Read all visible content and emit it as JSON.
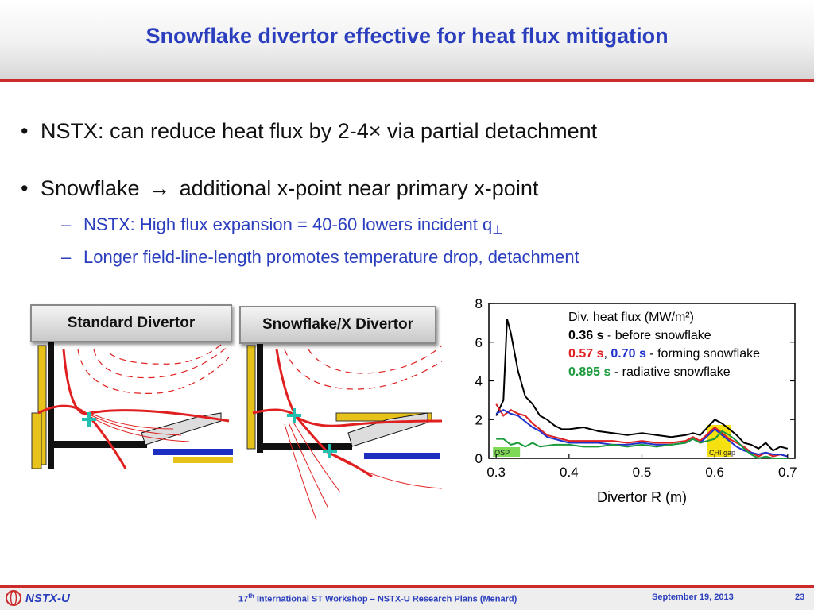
{
  "header": {
    "title": "Snowflake divertor effective for heat flux mitigation"
  },
  "bullets": [
    {
      "text": "NSTX: can reduce heat flux by 2-4×  via partial detachment"
    },
    {
      "pre": "Snowflake",
      "arrow": "→",
      "post": "additional x-point near primary x-point"
    }
  ],
  "subbullets": [
    {
      "text": "NSTX:  High flux expansion = 40-60 lowers incident q",
      "subscript": "⊥"
    },
    {
      "text": "Longer field-line-length promotes temperature drop, detachment"
    }
  ],
  "divertor_labels": {
    "standard": "Standard Divertor",
    "snowflake": "Snowflake/X Divertor"
  },
  "chart_data": {
    "type": "line",
    "title": "Div. heat flux (MW/m²)",
    "xlabel": "Divertor R (m)",
    "ylabel": "",
    "xlim": [
      0.29,
      0.71
    ],
    "ylim": [
      0,
      8
    ],
    "xticks": [
      0.3,
      0.4,
      0.5,
      0.6,
      0.7
    ],
    "yticks": [
      0,
      2,
      4,
      6,
      8
    ],
    "legend": [
      {
        "parts": [
          {
            "text": "0.36 s",
            "color": "#000000",
            "bold": true
          },
          {
            "text": " - before snowflake",
            "color": "#000000",
            "bold": false
          }
        ]
      },
      {
        "parts": [
          {
            "text": "0.57 s",
            "color": "#e02020",
            "bold": true
          },
          {
            "text": ", ",
            "color": "#000000",
            "bold": false
          },
          {
            "text": "0.70 s",
            "color": "#2233cc",
            "bold": true
          },
          {
            "text": " - forming snowflake",
            "color": "#000000",
            "bold": false
          }
        ]
      },
      {
        "parts": [
          {
            "text": "0.895 s",
            "color": "#1a9a3a",
            "bold": true
          },
          {
            "text": " - radiative snowflake",
            "color": "#000000",
            "bold": false
          }
        ]
      }
    ],
    "annotations": [
      {
        "text": "OSP",
        "x": 0.3,
        "color": "#7ed957"
      },
      {
        "text": "CHI gap",
        "x": 0.59,
        "color": "#f5e010"
      }
    ],
    "series": [
      {
        "color": "#000000",
        "x": [
          0.3,
          0.31,
          0.315,
          0.32,
          0.33,
          0.34,
          0.35,
          0.36,
          0.37,
          0.38,
          0.39,
          0.4,
          0.42,
          0.44,
          0.46,
          0.48,
          0.5,
          0.52,
          0.54,
          0.56,
          0.57,
          0.58,
          0.6,
          0.61,
          0.62,
          0.63,
          0.64,
          0.65,
          0.66,
          0.67,
          0.68,
          0.69,
          0.7
        ],
        "values": [
          2.2,
          3.0,
          7.2,
          6.5,
          4.5,
          3.2,
          2.8,
          2.2,
          2.0,
          1.7,
          1.5,
          1.5,
          1.6,
          1.4,
          1.3,
          1.2,
          1.3,
          1.2,
          1.1,
          1.2,
          1.3,
          1.2,
          2.0,
          1.8,
          1.5,
          1.2,
          0.8,
          0.7,
          0.5,
          0.8,
          0.4,
          0.6,
          0.5
        ]
      },
      {
        "color": "#e02020",
        "x": [
          0.3,
          0.31,
          0.32,
          0.33,
          0.34,
          0.35,
          0.36,
          0.37,
          0.38,
          0.39,
          0.4,
          0.42,
          0.44,
          0.46,
          0.48,
          0.5,
          0.52,
          0.54,
          0.56,
          0.57,
          0.58,
          0.6,
          0.61,
          0.62,
          0.63,
          0.64,
          0.65,
          0.66,
          0.67,
          0.68,
          0.69,
          0.7
        ],
        "values": [
          2.8,
          2.2,
          2.5,
          2.3,
          2.2,
          1.8,
          1.5,
          1.2,
          1.1,
          1.0,
          0.9,
          0.9,
          0.9,
          0.9,
          0.8,
          0.9,
          0.8,
          0.8,
          0.9,
          1.1,
          0.9,
          1.6,
          1.3,
          1.0,
          0.8,
          0.6,
          0.3,
          0.1,
          0.3,
          0.1,
          0.2,
          0.1
        ]
      },
      {
        "color": "#2233cc",
        "x": [
          0.3,
          0.31,
          0.32,
          0.33,
          0.34,
          0.35,
          0.36,
          0.37,
          0.38,
          0.39,
          0.4,
          0.42,
          0.44,
          0.46,
          0.48,
          0.5,
          0.52,
          0.54,
          0.56,
          0.57,
          0.58,
          0.6,
          0.61,
          0.62,
          0.63,
          0.64,
          0.65,
          0.66,
          0.67,
          0.68,
          0.69,
          0.7
        ],
        "values": [
          2.3,
          2.5,
          2.3,
          2.2,
          1.9,
          1.6,
          1.4,
          1.1,
          1.0,
          0.9,
          0.8,
          0.8,
          0.8,
          0.7,
          0.7,
          0.8,
          0.7,
          0.7,
          0.8,
          1.0,
          0.8,
          1.5,
          1.2,
          0.9,
          0.6,
          0.4,
          0.3,
          0.2,
          0.3,
          0.2,
          0.2,
          0.1
        ]
      },
      {
        "color": "#1a9a3a",
        "x": [
          0.3,
          0.31,
          0.32,
          0.33,
          0.34,
          0.35,
          0.36,
          0.38,
          0.4,
          0.42,
          0.44,
          0.46,
          0.48,
          0.5,
          0.52,
          0.54,
          0.56,
          0.57,
          0.58,
          0.6,
          0.61,
          0.62,
          0.63,
          0.64,
          0.65,
          0.66,
          0.67,
          0.68,
          0.69,
          0.7
        ],
        "values": [
          1.0,
          1.0,
          0.7,
          0.8,
          0.6,
          0.8,
          0.6,
          0.7,
          0.7,
          0.6,
          0.6,
          0.7,
          0.6,
          0.7,
          0.6,
          0.7,
          0.8,
          1.0,
          0.8,
          1.0,
          1.4,
          1.2,
          0.9,
          0.5,
          0.2,
          0.0,
          0.1,
          0.0,
          0.0,
          0.0
        ]
      }
    ]
  },
  "footer": {
    "logo": "NSTX-U",
    "conf_ord": "17",
    "conf_sup": "th",
    "conf_rest": " International ST Workshop –  NSTX-U Research Plans (Menard)",
    "date": "September 19, 2013",
    "page": "23"
  }
}
